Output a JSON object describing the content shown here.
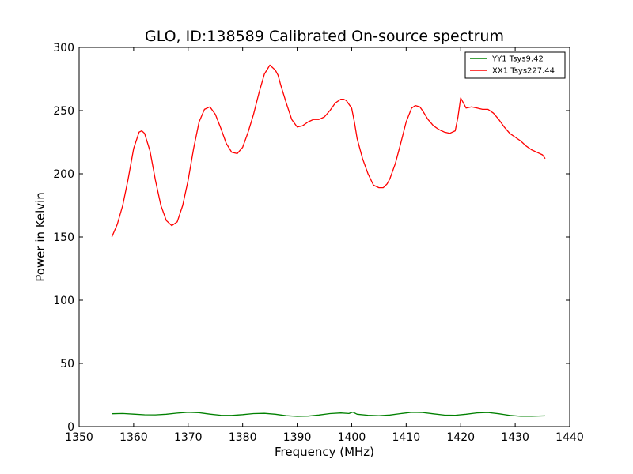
{
  "chart_data": {
    "type": "line",
    "title": "GLO, ID:138589 Calibrated On-source spectrum",
    "xlabel": "Frequency (MHz)",
    "ylabel": "Power in Kelvin",
    "xlim": [
      1350,
      1440
    ],
    "ylim": [
      0,
      300
    ],
    "xticks": [
      "1350",
      "1360",
      "1370",
      "1380",
      "1390",
      "1400",
      "1410",
      "1420",
      "1430",
      "1440"
    ],
    "yticks": [
      "0",
      "50",
      "100",
      "150",
      "200",
      "250",
      "300"
    ],
    "grid": false,
    "legend_position": "top-right",
    "series": [
      {
        "name": "YY1 Tsys9.42",
        "color": "#008000",
        "x": [
          1356,
          1358,
          1360,
          1362,
          1364,
          1366,
          1368,
          1370,
          1372,
          1374,
          1376,
          1378,
          1380,
          1382,
          1384,
          1386,
          1388,
          1390,
          1392,
          1394,
          1396,
          1398,
          1399.5,
          1400.2,
          1401,
          1403,
          1405,
          1407,
          1409,
          1411,
          1413,
          1415,
          1417,
          1419,
          1421,
          1423,
          1425,
          1427,
          1429,
          1431,
          1433,
          1435.5
        ],
        "values": [
          10.2,
          10.4,
          9.9,
          9.4,
          9.3,
          9.8,
          10.7,
          11.4,
          11.0,
          9.9,
          9.0,
          8.9,
          9.5,
          10.3,
          10.5,
          9.8,
          8.6,
          8.1,
          8.3,
          9.2,
          10.3,
          10.8,
          10.4,
          11.5,
          9.8,
          9.0,
          8.7,
          9.2,
          10.3,
          11.3,
          11.2,
          10.1,
          9.1,
          9.0,
          9.8,
          10.9,
          11.2,
          10.2,
          8.9,
          8.2,
          8.2,
          8.5
        ]
      },
      {
        "name": "XX1 Tsys227.44",
        "color": "#ff0000",
        "x": [
          1356,
          1357,
          1358,
          1359,
          1360,
          1361,
          1361.5,
          1362,
          1363,
          1364,
          1365,
          1366,
          1367,
          1368,
          1369,
          1370,
          1371,
          1372,
          1373,
          1374,
          1375,
          1376,
          1377,
          1378,
          1379,
          1380,
          1381,
          1382,
          1383,
          1384,
          1385,
          1386,
          1386.5,
          1387,
          1388,
          1389,
          1390,
          1391,
          1392,
          1393,
          1394,
          1395,
          1396,
          1397,
          1398,
          1398.5,
          1399,
          1399.5,
          1400,
          1400.5,
          1401,
          1402,
          1403,
          1404,
          1405,
          1405.8,
          1406.5,
          1407,
          1408,
          1409,
          1410,
          1411,
          1411.7,
          1412.5,
          1413,
          1414,
          1415,
          1416,
          1417,
          1418,
          1419,
          1419.5,
          1420,
          1420.5,
          1421,
          1422,
          1423,
          1424,
          1425,
          1426,
          1427,
          1428,
          1429,
          1430,
          1431,
          1432,
          1433,
          1434,
          1435,
          1435.5
        ],
        "values": [
          150,
          160,
          175,
          196,
          220,
          233,
          234,
          232,
          218,
          195,
          175,
          163,
          159,
          162,
          175,
          195,
          220,
          241,
          251,
          253,
          247,
          236,
          224,
          217,
          216,
          221,
          233,
          247,
          264,
          279,
          286,
          282,
          278,
          270,
          256,
          243,
          237,
          238,
          241,
          243,
          243,
          245,
          250,
          256,
          259,
          259,
          258,
          255,
          252,
          241,
          228,
          212,
          200,
          191,
          189,
          189,
          192,
          196,
          208,
          224,
          241,
          252,
          254,
          253,
          250,
          243,
          238,
          235,
          233,
          232,
          234,
          245,
          260,
          256,
          252,
          253,
          252,
          251,
          251,
          248,
          243,
          237,
          232,
          229,
          226,
          222,
          219,
          217,
          215,
          212
        ]
      }
    ]
  }
}
